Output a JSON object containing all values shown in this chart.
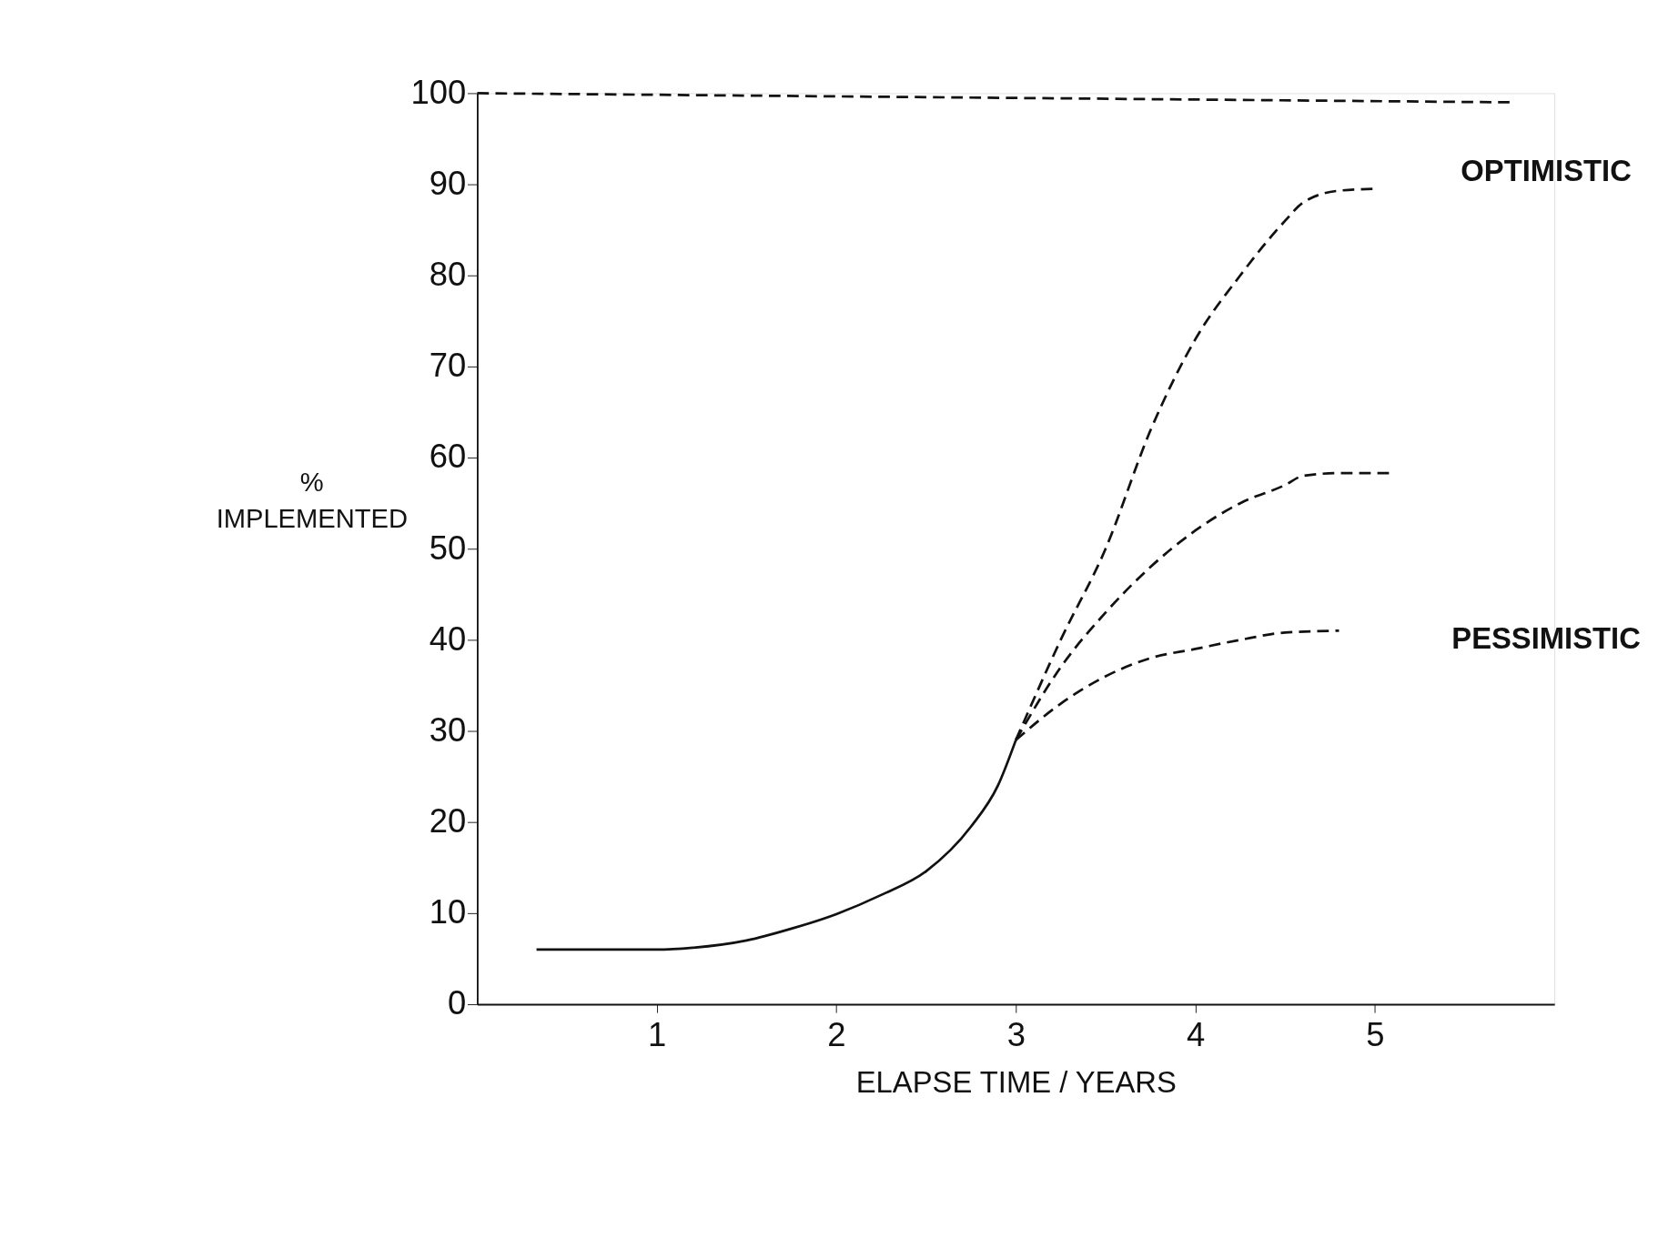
{
  "chart_data": {
    "type": "line",
    "xlabel": "ELAPSE TIME / YEARS",
    "ylabel": "%\nIMPLEMENTED",
    "xlim": [
      0,
      6
    ],
    "ylim": [
      0,
      100
    ],
    "xticks": [
      1,
      2,
      3,
      4,
      5
    ],
    "yticks": [
      0,
      10,
      20,
      30,
      40,
      50,
      60,
      70,
      80,
      90,
      100
    ],
    "grid": false,
    "series": [
      {
        "color": "#111111",
        "line_style": "solid",
        "x": [
          0.33,
          0.7,
          1.0,
          1.2,
          1.5,
          1.75,
          2.0,
          2.25,
          2.5,
          2.75,
          2.9,
          3.0
        ],
        "values": [
          6,
          6,
          6,
          6.2,
          7,
          8.3,
          9.9,
          12,
          14.6,
          19.5,
          24,
          29
        ]
      },
      {
        "color": "#111111",
        "line_style": "dashed",
        "x": [
          0,
          5.75
        ],
        "values": [
          100,
          99
        ]
      },
      {
        "color": "#111111",
        "line_style": "dashed",
        "x": [
          3.0,
          3.25,
          3.5,
          3.75,
          4.0,
          4.25,
          4.5,
          4.6,
          4.8,
          5.0
        ],
        "values": [
          29,
          40,
          50,
          63,
          73,
          80,
          86,
          88,
          89.3,
          89.5
        ]
      },
      {
        "color": "#111111",
        "line_style": "dashed",
        "x": [
          3.0,
          3.25,
          3.5,
          3.75,
          4.0,
          4.25,
          4.5,
          4.6,
          4.8,
          5.1
        ],
        "values": [
          29,
          37,
          43,
          48,
          52,
          55,
          57,
          58,
          58.3,
          58.3
        ]
      },
      {
        "color": "#111111",
        "line_style": "dashed",
        "x": [
          3.0,
          3.25,
          3.5,
          3.75,
          4.0,
          4.25,
          4.5,
          4.8
        ],
        "values": [
          29,
          33,
          36,
          38,
          39,
          40,
          40.8,
          41
        ]
      }
    ],
    "annotations": [
      "OPTIMISTIC",
      "PESSIMISTIC"
    ]
  }
}
